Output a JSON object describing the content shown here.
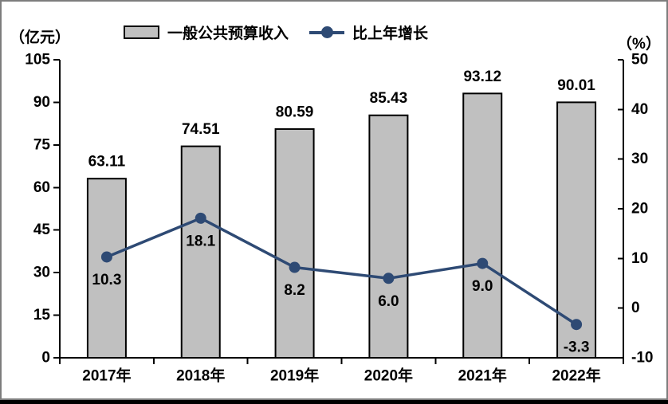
{
  "chart_data": {
    "type": "bar",
    "combo": "bar+line",
    "title": "",
    "categories": [
      "2017年",
      "2018年",
      "2019年",
      "2020年",
      "2021年",
      "2022年"
    ],
    "series": [
      {
        "name": "一般公共预算收入",
        "type": "bar",
        "axis": "left",
        "values": [
          63.11,
          74.51,
          80.59,
          85.43,
          93.12,
          90.01
        ],
        "value_labels": [
          "63.11",
          "74.51",
          "80.59",
          "85.43",
          "93.12",
          "90.01"
        ],
        "fill": "#c0c0c0",
        "stroke": "#000000"
      },
      {
        "name": "比上年增长",
        "type": "line",
        "axis": "right",
        "values": [
          10.3,
          18.1,
          8.2,
          6.0,
          9.0,
          -3.3
        ],
        "value_labels": [
          "10.3",
          "18.1",
          "8.2",
          "6.0",
          "9.0",
          "-3.3"
        ],
        "color": "#2e4a74"
      }
    ],
    "left_axis": {
      "unit": "（亿元）",
      "min": 0,
      "max": 105,
      "step": 15,
      "ticks": [
        0,
        15,
        30,
        45,
        60,
        75,
        90,
        105
      ],
      "tick_labels": [
        "0",
        "15",
        "30",
        "45",
        "60",
        "75",
        "90",
        "105"
      ]
    },
    "right_axis": {
      "unit": "（%）",
      "min": -10,
      "max": 50,
      "step": 10,
      "ticks": [
        -10,
        0,
        10,
        20,
        30,
        40,
        50
      ],
      "tick_labels": [
        "-10",
        "0",
        "10",
        "20",
        "30",
        "40",
        "50"
      ]
    },
    "grid": false,
    "legend_position": "top",
    "axis_color": "#000000",
    "label_color": "#000000"
  },
  "frame": {
    "border_color": "#7d7d7d",
    "bottom_strip_color": "#000000"
  }
}
